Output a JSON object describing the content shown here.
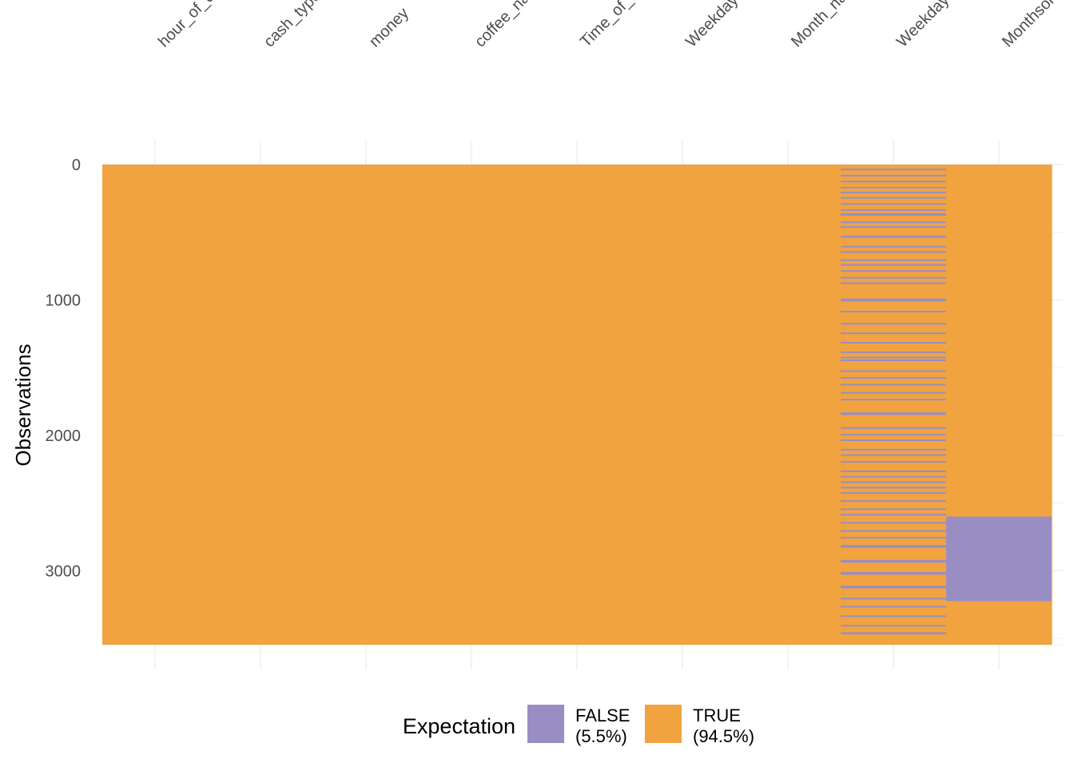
{
  "chart_data": {
    "type": "heatmap",
    "title": "",
    "xlabel": "",
    "ylabel": "Observations",
    "columns": [
      "hour_of_day",
      "cash_type",
      "money",
      "coffee_name",
      "Time_of_Day",
      "Weekday",
      "Month_name",
      "Weekdaysort",
      "Monthsort"
    ],
    "y_ticks": [
      "0",
      "1000",
      "2000",
      "3000"
    ],
    "y_tick_values": [
      0,
      1000,
      2000,
      3000
    ],
    "ylim": [
      0,
      3547
    ],
    "n_observations": 3547,
    "x_label_rotation_deg": -45,
    "legend": {
      "title": "Expectation",
      "position": "bottom",
      "entries": [
        {
          "key": "FALSE",
          "label": "FALSE",
          "pct": "(5.5%)",
          "color": "#998ec3"
        },
        {
          "key": "TRUE",
          "label": "TRUE",
          "pct": "(94.5%)",
          "color": "#f1a340"
        }
      ]
    },
    "colors": {
      "false": "#998ec3",
      "true": "#f1a340",
      "grid": "#ebebeb"
    },
    "false_ranges": [
      {
        "column": "Weekdaysort",
        "ranges": [
          [
            30,
            42
          ],
          [
            75,
            87
          ],
          [
            120,
            131
          ],
          [
            165,
            176
          ],
          [
            200,
            212
          ],
          [
            240,
            252
          ],
          [
            285,
            297
          ],
          [
            330,
            342
          ],
          [
            360,
            378
          ],
          [
            420,
            432
          ],
          [
            455,
            467
          ],
          [
            525,
            540
          ],
          [
            600,
            612
          ],
          [
            640,
            652
          ],
          [
            700,
            712
          ],
          [
            735,
            747
          ],
          [
            780,
            792
          ],
          [
            830,
            842
          ],
          [
            870,
            882
          ],
          [
            990,
            1010
          ],
          [
            1080,
            1092
          ],
          [
            1170,
            1182
          ],
          [
            1240,
            1252
          ],
          [
            1310,
            1322
          ],
          [
            1380,
            1392
          ],
          [
            1420,
            1432
          ],
          [
            1440,
            1452
          ],
          [
            1520,
            1532
          ],
          [
            1570,
            1582
          ],
          [
            1620,
            1632
          ],
          [
            1680,
            1692
          ],
          [
            1730,
            1742
          ],
          [
            1830,
            1850
          ],
          [
            1940,
            1952
          ],
          [
            1990,
            2002
          ],
          [
            2030,
            2042
          ],
          [
            2100,
            2112
          ],
          [
            2140,
            2152
          ],
          [
            2190,
            2202
          ],
          [
            2260,
            2272
          ],
          [
            2300,
            2312
          ],
          [
            2340,
            2352
          ],
          [
            2380,
            2392
          ],
          [
            2420,
            2432
          ],
          [
            2480,
            2492
          ],
          [
            2540,
            2552
          ],
          [
            2580,
            2592
          ],
          [
            2640,
            2652
          ],
          [
            2700,
            2712
          ],
          [
            2750,
            2762
          ],
          [
            2810,
            2830
          ],
          [
            2920,
            2940
          ],
          [
            3010,
            3030
          ],
          [
            3110,
            3130
          ],
          [
            3200,
            3212
          ],
          [
            3260,
            3272
          ],
          [
            3330,
            3342
          ],
          [
            3400,
            3412
          ],
          [
            3455,
            3470
          ]
        ]
      },
      {
        "column": "Monthsort",
        "ranges": [
          [
            2600,
            3225
          ]
        ]
      }
    ]
  }
}
